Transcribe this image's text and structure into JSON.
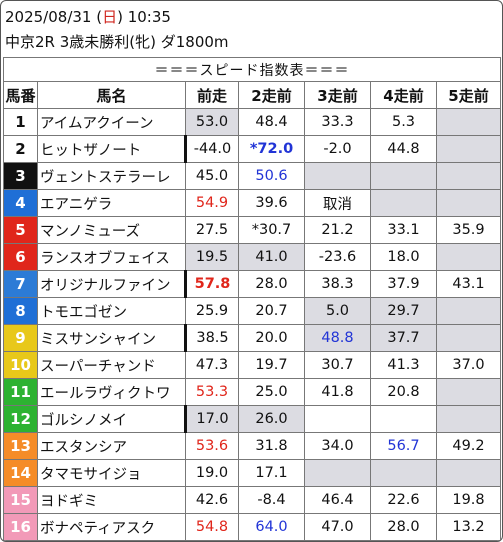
{
  "header": {
    "date_prefix": "2025/08/31 (",
    "weekday": "日",
    "date_suffix": ") 10:35",
    "race_line": "中京2R 3歳未勝利(牝) ダ1800m"
  },
  "table": {
    "title": "＝＝＝スピード指数表＝＝＝",
    "columns": [
      "馬番",
      "馬名",
      "前走",
      "2走前",
      "3走前",
      "4走前",
      "5走前"
    ],
    "rows": [
      {
        "num": "1",
        "name": "アイムアクイーン",
        "r1": "53.0",
        "r2": "48.4",
        "r3": "33.3",
        "r4": "5.3",
        "r5": ""
      },
      {
        "num": "2",
        "name": "ヒットザノート",
        "r1": "-44.0",
        "r2": "*72.0",
        "r3": "-2.0",
        "r4": "44.8",
        "r5": ""
      },
      {
        "num": "3",
        "name": "ヴェントステラーレ",
        "r1": "45.0",
        "r2": "50.6",
        "r3": "",
        "r4": "",
        "r5": ""
      },
      {
        "num": "4",
        "name": "エアニゲラ",
        "r1": "54.9",
        "r2": "39.6",
        "r3": "取消",
        "r4": "",
        "r5": ""
      },
      {
        "num": "5",
        "name": "マンノミューズ",
        "r1": "27.5",
        "r2": "*30.7",
        "r3": "21.2",
        "r4": "33.1",
        "r5": "35.9"
      },
      {
        "num": "6",
        "name": "ランスオブフェイス",
        "r1": "19.5",
        "r2": "41.0",
        "r3": "-23.6",
        "r4": "18.0",
        "r5": ""
      },
      {
        "num": "7",
        "name": "オリジナルファイン",
        "r1": "57.8",
        "r2": "28.0",
        "r3": "38.3",
        "r4": "37.9",
        "r5": "43.1"
      },
      {
        "num": "8",
        "name": "トモエゴゼン",
        "r1": "25.9",
        "r2": "20.7",
        "r3": "5.0",
        "r4": "29.7",
        "r5": ""
      },
      {
        "num": "9",
        "name": "ミスサンシャイン",
        "r1": "38.5",
        "r2": "20.0",
        "r3": "48.8",
        "r4": "37.7",
        "r5": ""
      },
      {
        "num": "10",
        "name": "スーパーチャンド",
        "r1": "47.3",
        "r2": "19.7",
        "r3": "30.7",
        "r4": "41.3",
        "r5": "37.0"
      },
      {
        "num": "11",
        "name": "エールラヴィクトワ",
        "r1": "53.3",
        "r2": "25.0",
        "r3": "41.8",
        "r4": "20.8",
        "r5": ""
      },
      {
        "num": "12",
        "name": "ゴルシノメイ",
        "r1": "17.0",
        "r2": "26.0",
        "r3": "",
        "r4": "",
        "r5": ""
      },
      {
        "num": "13",
        "name": "エスタンシア",
        "r1": "53.6",
        "r2": "31.8",
        "r3": "34.0",
        "r4": "56.7",
        "r5": "49.2"
      },
      {
        "num": "14",
        "name": "タマモサイジョ",
        "r1": "19.0",
        "r2": "17.1",
        "r3": "",
        "r4": "",
        "r5": ""
      },
      {
        "num": "15",
        "name": "ヨドギミ",
        "r1": "42.6",
        "r2": "-8.4",
        "r3": "46.4",
        "r4": "22.6",
        "r5": "19.8"
      },
      {
        "num": "16",
        "name": "ボナペティアスク",
        "r1": "54.8",
        "r2": "64.0",
        "r3": "47.0",
        "r4": "28.0",
        "r5": "13.2"
      }
    ]
  },
  "colors": {
    "gate_bg": [
      "#ffffff",
      "#ffffff",
      "#111111",
      "#1f6fd6",
      "#e0261b",
      "#e0261b",
      "#2c7bd6",
      "#1f6fd6",
      "#e8c81a",
      "#e8c81a",
      "#2db231",
      "#2db231",
      "#f58c28",
      "#f58c28",
      "#f29ab8",
      "#f29ab8"
    ],
    "gate_fg": [
      "#111111",
      "#111111",
      "#ffffff",
      "#ffffff",
      "#ffffff",
      "#ffffff",
      "#ffffff",
      "#ffffff",
      "#ffffff",
      "#ffffff",
      "#ffffff",
      "#ffffff",
      "#ffffff",
      "#ffffff",
      "#ffffff",
      "#ffffff"
    ],
    "gray_cell": "#dcdce2",
    "red": "#e0261b",
    "blue": "#2134d6"
  }
}
